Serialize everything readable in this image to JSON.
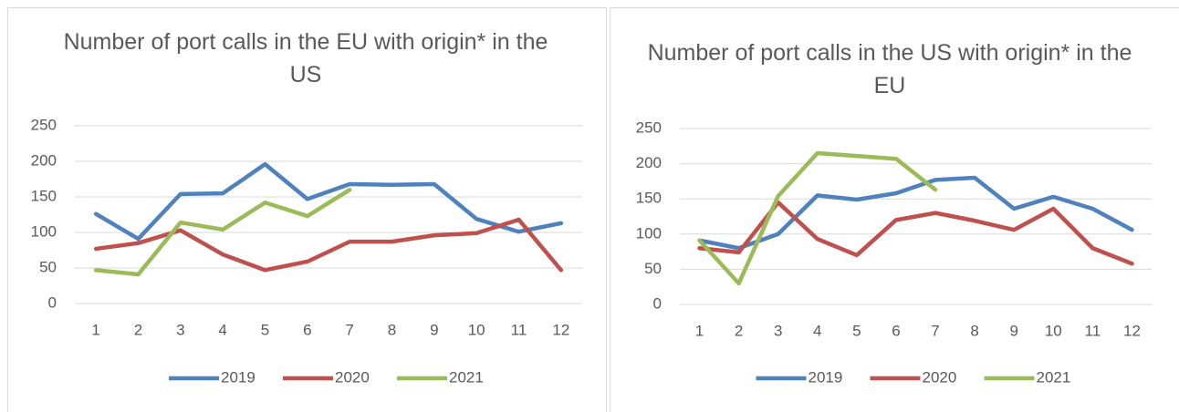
{
  "chart_data": [
    {
      "type": "line",
      "title": "Number of port calls in the EU with origin* in the US",
      "categories": [
        1,
        2,
        3,
        4,
        5,
        6,
        7,
        8,
        9,
        10,
        11,
        12
      ],
      "ylim": [
        0,
        250
      ],
      "yticks": [
        0,
        50,
        100,
        150,
        200,
        250
      ],
      "grid": true,
      "legend": "bottom",
      "series": [
        {
          "name": "2019",
          "color": "#4f81bd",
          "values": [
            126,
            91,
            154,
            155,
            196,
            147,
            168,
            167,
            168,
            119,
            101,
            113
          ]
        },
        {
          "name": "2020",
          "color": "#c0504d",
          "values": [
            77,
            85,
            103,
            69,
            47,
            59,
            87,
            87,
            96,
            99,
            118,
            47
          ]
        },
        {
          "name": "2021",
          "color": "#9bbb59",
          "values": [
            47,
            41,
            114,
            104,
            142,
            123,
            160,
            null,
            null,
            null,
            null,
            null
          ]
        }
      ]
    },
    {
      "type": "line",
      "title": "Number of port calls in the US with origin* in the EU",
      "categories": [
        1,
        2,
        3,
        4,
        5,
        6,
        7,
        8,
        9,
        10,
        11,
        12
      ],
      "ylim": [
        0,
        250
      ],
      "yticks": [
        0,
        50,
        100,
        150,
        200,
        250
      ],
      "grid": true,
      "legend": "bottom",
      "series": [
        {
          "name": "2019",
          "color": "#4f81bd",
          "values": [
            91,
            80,
            100,
            155,
            149,
            158,
            177,
            180,
            136,
            153,
            136,
            106
          ]
        },
        {
          "name": "2020",
          "color": "#c0504d",
          "values": [
            80,
            74,
            145,
            93,
            70,
            120,
            130,
            119,
            106,
            136,
            80,
            58
          ]
        },
        {
          "name": "2021",
          "color": "#9bbb59",
          "values": [
            91,
            30,
            154,
            215,
            211,
            207,
            163,
            null,
            null,
            null,
            null,
            null
          ]
        }
      ]
    }
  ]
}
